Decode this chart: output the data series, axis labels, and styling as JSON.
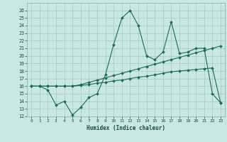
{
  "xlabel": "Humidex (Indice chaleur)",
  "x_ticks": [
    0,
    1,
    2,
    3,
    4,
    5,
    6,
    7,
    8,
    9,
    10,
    11,
    12,
    13,
    14,
    15,
    16,
    17,
    18,
    19,
    20,
    21,
    22,
    23
  ],
  "ylim": [
    12,
    27
  ],
  "yticks": [
    12,
    13,
    14,
    15,
    16,
    17,
    18,
    19,
    20,
    21,
    22,
    23,
    24,
    25,
    26
  ],
  "bg_color": "#c8e8e0",
  "grid_color": "#a0c8c0",
  "line_color": "#1a6b5a",
  "series1_y": [
    16,
    16,
    15.5,
    13.5,
    14,
    12.2,
    13.2,
    14.5,
    15,
    17.5,
    21.5,
    25,
    26,
    24,
    20,
    19.5,
    20.5,
    24.5,
    20.3,
    20.5,
    21,
    21,
    15,
    13.8
  ],
  "series2_y": [
    16,
    16,
    16,
    16,
    16,
    16,
    16.2,
    16.5,
    16.8,
    17.1,
    17.4,
    17.7,
    18.0,
    18.3,
    18.6,
    18.9,
    19.2,
    19.5,
    19.8,
    20.1,
    20.4,
    20.7,
    21.0,
    21.3
  ],
  "series3_y": [
    16,
    16,
    16,
    16,
    16,
    16,
    16.1,
    16.2,
    16.4,
    16.5,
    16.7,
    16.8,
    17.0,
    17.2,
    17.3,
    17.5,
    17.7,
    17.9,
    18.0,
    18.1,
    18.2,
    18.3,
    18.4,
    13.8
  ]
}
